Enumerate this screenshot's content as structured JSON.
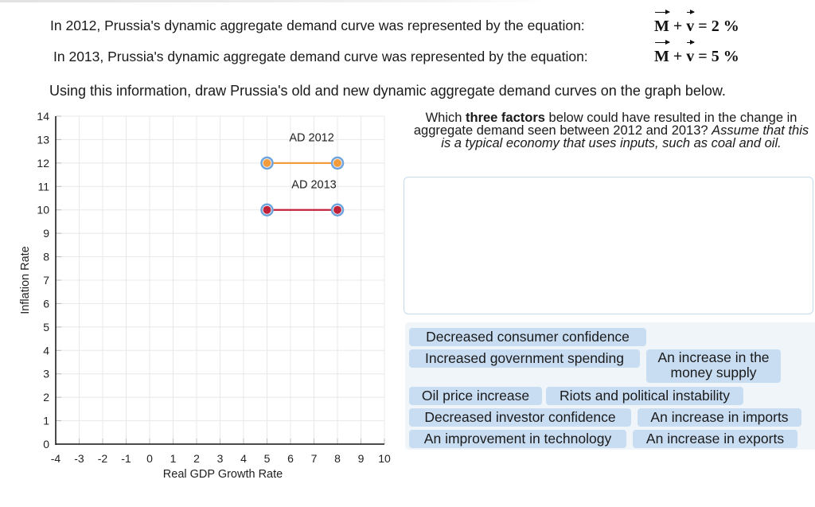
{
  "header": {
    "line_2012": "In 2012, Prussia's dynamic aggregate demand curve was represented by the equation:",
    "eq_2012": {
      "m": "M",
      "plus": "+",
      "v": "v",
      "eq": "= 2 %"
    },
    "line_2013": "In 2013, Prussia's dynamic aggregate demand curve was represented by the equation:",
    "eq_2013": {
      "m": "M",
      "plus": "+",
      "v": "v",
      "eq": "= 5 %"
    },
    "instruction": "Using this information, draw Prussia's old and new dynamic aggregate demand curves on the graph below."
  },
  "question": {
    "part1": "Which ",
    "bold": "three factors",
    "part2": " below could have resulted in the change in aggregate demand seen between 2012 and 2013? ",
    "italic": "Assume that this is a typical economy that uses inputs, such as coal and oil."
  },
  "answer_box": {
    "items": []
  },
  "choices": [
    "Decreased consumer confidence",
    "Increased government spending",
    "An increase in the money supply",
    "Oil price increase",
    "Riots and political instability",
    "Decreased investor confidence",
    "An increase in imports",
    "An improvement in technology",
    "An increase in exports"
  ],
  "colors": {
    "ad2012": "#f39c3e",
    "ad2013": "#c0223a",
    "point_ring": "#6fa3db",
    "grid": "#e8e8e8",
    "chip_bg": "#c9ddf2",
    "chip_area_bg": "#f0f5fa",
    "dropbox_border": "#c5dbf0"
  },
  "chart_data": {
    "type": "line",
    "title": "",
    "xlabel": "Real GDP Growth Rate",
    "ylabel": "Inflation Rate",
    "xlim": [
      -4,
      10
    ],
    "ylim": [
      0,
      14
    ],
    "xticks": [
      -4,
      -3,
      -2,
      -1,
      0,
      1,
      2,
      3,
      4,
      5,
      6,
      7,
      8,
      9,
      10
    ],
    "yticks": [
      0,
      1,
      2,
      3,
      4,
      5,
      6,
      7,
      8,
      9,
      10,
      11,
      12,
      13,
      14
    ],
    "grid": true,
    "series": [
      {
        "name": "AD 2012",
        "color": "#f39c3e",
        "points": [
          [
            5,
            12
          ],
          [
            8,
            12
          ]
        ]
      },
      {
        "name": "AD 2013",
        "color": "#c0223a",
        "points": [
          [
            5,
            10
          ],
          [
            8,
            10
          ]
        ]
      }
    ],
    "annotations": [
      {
        "text": "AD 2012",
        "x": 6.9,
        "y": 13.1
      },
      {
        "text": "AD 2013",
        "x": 7.0,
        "y": 11.1
      }
    ]
  }
}
